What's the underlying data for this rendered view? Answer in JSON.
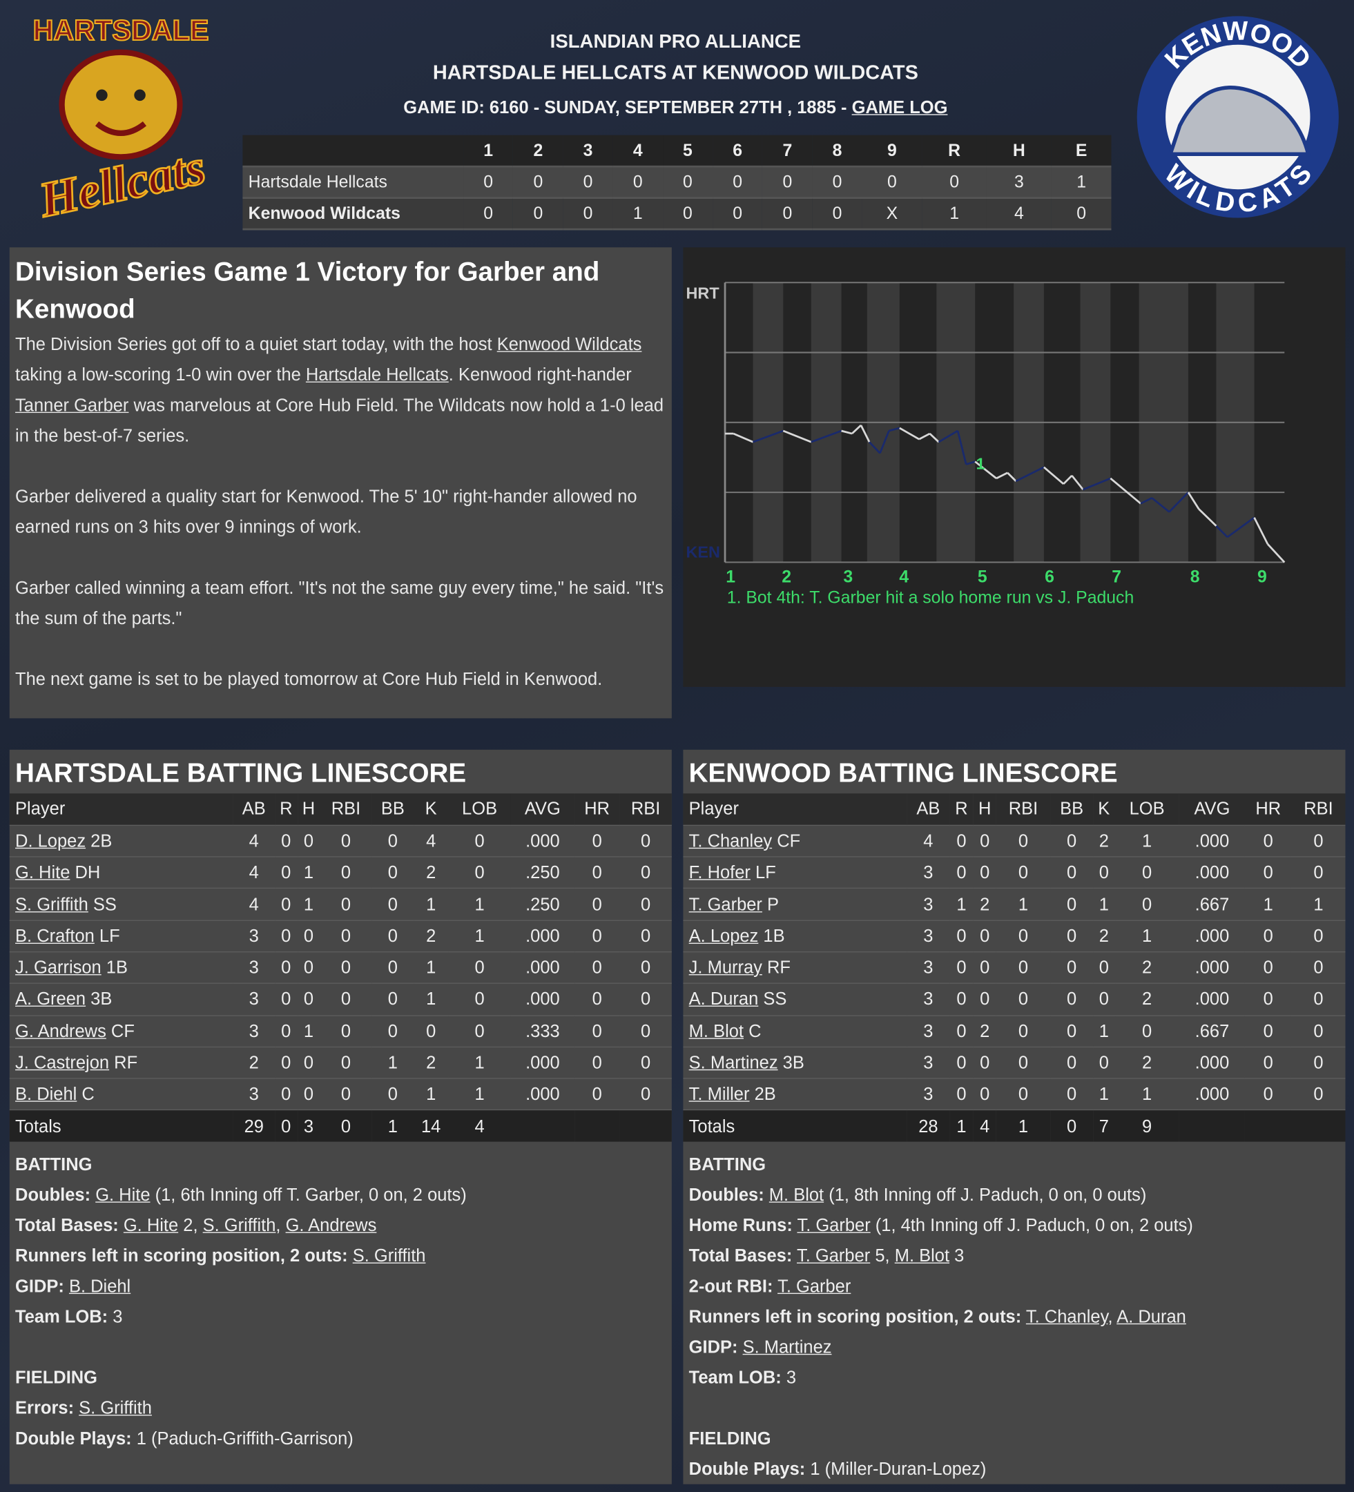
{
  "header": {
    "league": "ISLANDIAN PRO ALLIANCE",
    "matchup": "HARTSDALE HELLCATS AT KENWOOD WILDCATS",
    "game_info": "GAME ID: 6160 - SUNDAY, SEPTEMBER 27TH , 1885 - ",
    "game_log_link": "GAME LOG"
  },
  "logos": {
    "away": {
      "top": "HARTSDALE",
      "bottom": "Hellcats"
    },
    "home": {
      "top": "KENWOOD",
      "bottom": "WILDCATS"
    }
  },
  "linescore": {
    "columns": [
      "1",
      "2",
      "3",
      "4",
      "5",
      "6",
      "7",
      "8",
      "9",
      "R",
      "H",
      "E"
    ],
    "rows": [
      {
        "team": "Hartsdale Hellcats",
        "values": [
          "0",
          "0",
          "0",
          "0",
          "0",
          "0",
          "0",
          "0",
          "0",
          "0",
          "3",
          "1"
        ]
      },
      {
        "team": "Kenwood Wildcats",
        "values": [
          "0",
          "0",
          "0",
          "1",
          "0",
          "0",
          "0",
          "0",
          "X",
          "1",
          "4",
          "0"
        ]
      }
    ]
  },
  "story": {
    "headline": "Division Series Game 1 Victory for Garber and Kenwood",
    "paragraphs": [
      [
        {
          "t": "The Division Series got off to a quiet start today, with the host "
        },
        {
          "t": "Kenwood Wildcats",
          "link": true
        },
        {
          "t": " taking a low-scoring 1-0 win over the "
        },
        {
          "t": "Hartsdale Hellcats",
          "link": true
        },
        {
          "t": ". Kenwood right-hander "
        },
        {
          "t": "Tanner Garber",
          "link": true
        },
        {
          "t": " was marvelous at Core Hub Field. The Wildcats now hold a 1-0 lead in the best-of-7 series."
        }
      ],
      [
        {
          "t": "Garber delivered a quality start for Kenwood. The 5' 10\" right-hander allowed no earned runs on 3 hits over 9 innings of work."
        }
      ],
      [
        {
          "t": "Garber called winning a team effort. \"It's not the same guy every time,\" he said. \"It's the sum of the parts.\""
        }
      ],
      [
        {
          "t": "The next game is set to be played tomorrow at Core Hub Field in Kenwood."
        }
      ]
    ]
  },
  "chart_data": {
    "type": "line",
    "title": "",
    "y_top_label": "HRT",
    "y_bottom_label": "KEN",
    "ylim": [
      0,
      1
    ],
    "grid": true,
    "x_tick_labels": [
      "1",
      "2",
      "3",
      "4",
      "5",
      "6",
      "7",
      "8",
      "9"
    ],
    "x_tick_positions": [
      1,
      11,
      22,
      32,
      46,
      58,
      70,
      84,
      96
    ],
    "inning_starts": [
      0,
      10.4,
      20.8,
      31.2,
      44.7,
      57.0,
      68.9,
      82.8,
      94.6,
      100
    ],
    "bottom_half_starts": [
      5.0,
      15.4,
      25.4,
      37.8,
      51.6,
      63.5,
      74.0,
      87.8
    ],
    "colors": {
      "hartsdale": "#d8d8d8",
      "kenwood": "#1a2a6c",
      "label": "#3ddc6a"
    },
    "points": [
      [
        0,
        0.46,
        "h"
      ],
      [
        1.5,
        0.46,
        "h"
      ],
      [
        5,
        0.43,
        "h"
      ],
      [
        10.4,
        0.47,
        "k"
      ],
      [
        15.4,
        0.43,
        "h"
      ],
      [
        20.8,
        0.47,
        "k"
      ],
      [
        22.7,
        0.46,
        "h"
      ],
      [
        24.3,
        0.49,
        "h"
      ],
      [
        25.8,
        0.43,
        "h"
      ],
      [
        27.7,
        0.39,
        "k"
      ],
      [
        29.3,
        0.47,
        "k"
      ],
      [
        31.2,
        0.48,
        "k"
      ],
      [
        34.7,
        0.44,
        "h"
      ],
      [
        36.6,
        0.46,
        "h"
      ],
      [
        38.2,
        0.43,
        "h"
      ],
      [
        41.6,
        0.47,
        "k"
      ],
      [
        43.1,
        0.35,
        "k"
      ],
      [
        44.7,
        0.36,
        "k"
      ],
      [
        48.5,
        0.3,
        "h"
      ],
      [
        50.5,
        0.32,
        "h"
      ],
      [
        52,
        0.29,
        "h"
      ],
      [
        57,
        0.34,
        "k"
      ],
      [
        60.5,
        0.28,
        "h"
      ],
      [
        62,
        0.31,
        "h"
      ],
      [
        64,
        0.26,
        "h"
      ],
      [
        68.9,
        0.3,
        "k"
      ],
      [
        74.3,
        0.21,
        "h"
      ],
      [
        76.3,
        0.23,
        "k"
      ],
      [
        79.4,
        0.18,
        "k"
      ],
      [
        82.8,
        0.25,
        "k"
      ],
      [
        84.7,
        0.19,
        "h"
      ],
      [
        87.8,
        0.13,
        "h"
      ],
      [
        89.8,
        0.09,
        "k"
      ],
      [
        94.6,
        0.16,
        "k"
      ],
      [
        97,
        0.065,
        "h"
      ],
      [
        100,
        0,
        "h"
      ]
    ],
    "annotations": [
      {
        "marker": "1",
        "x": 43.5,
        "y": 0.36,
        "text": "1. Bot 4th: T. Garber hit a solo home run vs J. Paduch"
      }
    ]
  },
  "batting": [
    {
      "title": "HARTSDALE BATTING LINESCORE",
      "columns": [
        "Player",
        "AB",
        "R",
        "H",
        "RBI",
        "BB",
        "K",
        "LOB",
        "AVG",
        "HR",
        "RBI"
      ],
      "players": [
        {
          "name": "D. Lopez",
          "pos": "2B",
          "stats": [
            "4",
            "0",
            "0",
            "0",
            "0",
            "4",
            "0",
            ".000",
            "0",
            "0"
          ]
        },
        {
          "name": "G. Hite",
          "pos": "DH",
          "stats": [
            "4",
            "0",
            "1",
            "0",
            "0",
            "2",
            "0",
            ".250",
            "0",
            "0"
          ]
        },
        {
          "name": "S. Griffith",
          "pos": "SS",
          "stats": [
            "4",
            "0",
            "1",
            "0",
            "0",
            "1",
            "1",
            ".250",
            "0",
            "0"
          ]
        },
        {
          "name": "B. Crafton",
          "pos": "LF",
          "stats": [
            "3",
            "0",
            "0",
            "0",
            "0",
            "2",
            "1",
            ".000",
            "0",
            "0"
          ]
        },
        {
          "name": "J. Garrison",
          "pos": "1B",
          "stats": [
            "3",
            "0",
            "0",
            "0",
            "0",
            "1",
            "0",
            ".000",
            "0",
            "0"
          ]
        },
        {
          "name": "A. Green",
          "pos": "3B",
          "stats": [
            "3",
            "0",
            "0",
            "0",
            "0",
            "1",
            "0",
            ".000",
            "0",
            "0"
          ]
        },
        {
          "name": "G. Andrews",
          "pos": "CF",
          "stats": [
            "3",
            "0",
            "1",
            "0",
            "0",
            "0",
            "0",
            ".333",
            "0",
            "0"
          ]
        },
        {
          "name": "J. Castrejon",
          "pos": "RF",
          "stats": [
            "2",
            "0",
            "0",
            "0",
            "1",
            "2",
            "1",
            ".000",
            "0",
            "0"
          ]
        },
        {
          "name": "B. Diehl",
          "pos": "C",
          "stats": [
            "3",
            "0",
            "0",
            "0",
            "0",
            "1",
            "1",
            ".000",
            "0",
            "0"
          ]
        }
      ],
      "totals": {
        "label": "Totals",
        "stats": [
          "29",
          "0",
          "3",
          "0",
          "1",
          "14",
          "4",
          "",
          "",
          ""
        ]
      },
      "notes": [
        {
          "section": "BATTING"
        },
        {
          "label": "Doubles:",
          "parts": [
            {
              "t": "G. Hite",
              "link": true
            },
            {
              "t": " (1, 6th Inning off T. Garber, 0 on, 2 outs)"
            }
          ]
        },
        {
          "label": "Total Bases:",
          "parts": [
            {
              "t": "G. Hite",
              "link": true
            },
            {
              "t": " 2, "
            },
            {
              "t": "S. Griffith",
              "link": true
            },
            {
              "t": ", "
            },
            {
              "t": "G. Andrews",
              "link": true
            }
          ]
        },
        {
          "label": "Runners left in scoring position, 2 outs:",
          "parts": [
            {
              "t": "S. Griffith",
              "link": true
            }
          ]
        },
        {
          "label": "GIDP:",
          "parts": [
            {
              "t": "B. Diehl",
              "link": true
            }
          ]
        },
        {
          "label": "Team LOB:",
          "parts": [
            {
              "t": "3"
            }
          ]
        },
        {
          "blank": true
        },
        {
          "section": "FIELDING"
        },
        {
          "label": "Errors:",
          "parts": [
            {
              "t": "S. Griffith",
              "link": true
            }
          ]
        },
        {
          "label": "Double Plays:",
          "parts": [
            {
              "t": "1 (Paduch-Griffith-Garrison)"
            }
          ]
        }
      ]
    },
    {
      "title": "KENWOOD BATTING LINESCORE",
      "columns": [
        "Player",
        "AB",
        "R",
        "H",
        "RBI",
        "BB",
        "K",
        "LOB",
        "AVG",
        "HR",
        "RBI"
      ],
      "players": [
        {
          "name": "T. Chanley",
          "pos": "CF",
          "stats": [
            "4",
            "0",
            "0",
            "0",
            "0",
            "2",
            "1",
            ".000",
            "0",
            "0"
          ]
        },
        {
          "name": "F. Hofer",
          "pos": "LF",
          "stats": [
            "3",
            "0",
            "0",
            "0",
            "0",
            "0",
            "0",
            ".000",
            "0",
            "0"
          ]
        },
        {
          "name": "T. Garber",
          "pos": "P",
          "stats": [
            "3",
            "1",
            "2",
            "1",
            "0",
            "1",
            "0",
            ".667",
            "1",
            "1"
          ]
        },
        {
          "name": "A. Lopez",
          "pos": "1B",
          "stats": [
            "3",
            "0",
            "0",
            "0",
            "0",
            "2",
            "1",
            ".000",
            "0",
            "0"
          ]
        },
        {
          "name": "J. Murray",
          "pos": "RF",
          "stats": [
            "3",
            "0",
            "0",
            "0",
            "0",
            "0",
            "2",
            ".000",
            "0",
            "0"
          ]
        },
        {
          "name": "A. Duran",
          "pos": "SS",
          "stats": [
            "3",
            "0",
            "0",
            "0",
            "0",
            "0",
            "2",
            ".000",
            "0",
            "0"
          ]
        },
        {
          "name": "M. Blot",
          "pos": "C",
          "stats": [
            "3",
            "0",
            "2",
            "0",
            "0",
            "1",
            "0",
            ".667",
            "0",
            "0"
          ]
        },
        {
          "name": "S. Martinez",
          "pos": "3B",
          "stats": [
            "3",
            "0",
            "0",
            "0",
            "0",
            "0",
            "2",
            ".000",
            "0",
            "0"
          ]
        },
        {
          "name": "T. Miller",
          "pos": "2B",
          "stats": [
            "3",
            "0",
            "0",
            "0",
            "0",
            "1",
            "1",
            ".000",
            "0",
            "0"
          ]
        }
      ],
      "totals": {
        "label": "Totals",
        "stats": [
          "28",
          "1",
          "4",
          "1",
          "0",
          "7",
          "9",
          "",
          "",
          ""
        ]
      },
      "notes": [
        {
          "section": "BATTING"
        },
        {
          "label": "Doubles:",
          "parts": [
            {
              "t": "M. Blot",
              "link": true
            },
            {
              "t": " (1, 8th Inning off J. Paduch, 0 on, 0 outs)"
            }
          ]
        },
        {
          "label": "Home Runs:",
          "parts": [
            {
              "t": "T. Garber",
              "link": true
            },
            {
              "t": " (1, 4th Inning off J. Paduch, 0 on, 2 outs)"
            }
          ]
        },
        {
          "label": "Total Bases:",
          "parts": [
            {
              "t": "T. Garber",
              "link": true
            },
            {
              "t": " 5, "
            },
            {
              "t": "M. Blot",
              "link": true
            },
            {
              "t": " 3"
            }
          ]
        },
        {
          "label": "2-out RBI:",
          "parts": [
            {
              "t": "T. Garber",
              "link": true
            }
          ]
        },
        {
          "label": "Runners left in scoring position, 2 outs:",
          "parts": [
            {
              "t": "T. Chanley",
              "link": true
            },
            {
              "t": ", "
            },
            {
              "t": "A. Duran",
              "link": true
            }
          ]
        },
        {
          "label": "GIDP:",
          "parts": [
            {
              "t": "S. Martinez",
              "link": true
            }
          ]
        },
        {
          "label": "Team LOB:",
          "parts": [
            {
              "t": "3"
            }
          ]
        },
        {
          "blank": true
        },
        {
          "section": "FIELDING"
        },
        {
          "label": "Double Plays:",
          "parts": [
            {
              "t": "1 (Miller-Duran-Lopez)"
            }
          ]
        }
      ]
    }
  ]
}
